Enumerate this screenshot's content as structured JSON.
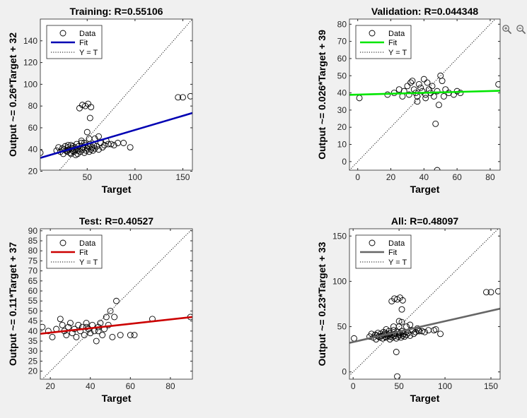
{
  "toolbar": {
    "icons": [
      "export-icon",
      "brush-icon",
      "datatip-icon",
      "pan-icon",
      "zoom-in-icon",
      "zoom-out-icon"
    ]
  },
  "legend": {
    "entries": [
      "Data",
      "Fit",
      "Y = T"
    ]
  },
  "colors": {
    "axes_bg": "#ffffff",
    "figure_bg": "#f0f0f0"
  },
  "chart_data": [
    {
      "type": "scatter",
      "title": "Training: R=0.55106",
      "xlabel": "Target",
      "ylabel": "Output ~= 0.26*Target + 32",
      "xlim": [
        1,
        160
      ],
      "ylim": [
        21,
        160
      ],
      "xticks": [
        50,
        100,
        150
      ],
      "yticks": [
        20,
        40,
        60,
        80,
        100,
        120,
        140
      ],
      "legend_position": "top-left",
      "fit": {
        "slope": 0.26,
        "intercept": 32,
        "color": "#0000b3"
      },
      "points": [
        [
          1,
          37
        ],
        [
          18,
          39
        ],
        [
          20,
          42
        ],
        [
          22,
          38
        ],
        [
          24,
          41
        ],
        [
          25,
          36
        ],
        [
          26,
          40
        ],
        [
          27,
          43
        ],
        [
          28,
          39
        ],
        [
          29,
          38
        ],
        [
          30,
          42
        ],
        [
          31,
          40
        ],
        [
          32,
          37
        ],
        [
          33,
          44
        ],
        [
          34,
          41
        ],
        [
          35,
          39
        ],
        [
          35,
          43
        ],
        [
          36,
          38
        ],
        [
          37,
          42
        ],
        [
          38,
          40
        ],
        [
          39,
          45
        ],
        [
          40,
          39
        ],
        [
          40,
          36
        ],
        [
          41,
          43
        ],
        [
          42,
          41
        ],
        [
          43,
          38
        ],
        [
          44,
          46
        ],
        [
          45,
          40
        ],
        [
          46,
          42
        ],
        [
          47,
          37
        ],
        [
          48,
          44
        ],
        [
          49,
          39
        ],
        [
          50,
          41
        ],
        [
          51,
          43
        ],
        [
          52,
          38
        ],
        [
          53,
          45
        ],
        [
          54,
          40
        ],
        [
          55,
          42
        ],
        [
          56,
          39
        ],
        [
          57,
          44
        ],
        [
          58,
          41
        ],
        [
          60,
          43
        ],
        [
          62,
          40
        ],
        [
          64,
          46
        ],
        [
          66,
          42
        ],
        [
          68,
          44
        ],
        [
          70,
          48
        ],
        [
          72,
          45
        ],
        [
          75,
          45
        ],
        [
          78,
          44
        ],
        [
          82,
          46
        ],
        [
          88,
          46
        ],
        [
          95,
          42
        ],
        [
          42,
          78
        ],
        [
          45,
          81
        ],
        [
          48,
          80
        ],
        [
          51,
          82
        ],
        [
          54,
          79
        ],
        [
          50,
          56
        ],
        [
          53,
          69
        ],
        [
          145,
          88
        ],
        [
          150,
          88
        ],
        [
          158,
          89
        ],
        [
          30,
          44
        ],
        [
          33,
          36
        ],
        [
          38,
          35
        ],
        [
          44,
          48
        ],
        [
          47,
          46
        ],
        [
          52,
          50
        ],
        [
          58,
          50
        ],
        [
          62,
          52
        ]
      ]
    },
    {
      "type": "scatter",
      "title": "Validation: R=0.044348",
      "xlabel": "Target",
      "ylabel": "Output ~= 0.026*Target + 39",
      "xlim": [
        -5,
        86
      ],
      "ylim": [
        -5,
        83
      ],
      "xticks": [
        0,
        20,
        40,
        60,
        80
      ],
      "yticks": [
        0,
        10,
        20,
        30,
        40,
        50,
        60,
        70,
        80
      ],
      "legend_position": "top-left",
      "fit": {
        "slope": 0.026,
        "intercept": 39,
        "color": "#00e600"
      },
      "points": [
        [
          1,
          37
        ],
        [
          18,
          39
        ],
        [
          22,
          40
        ],
        [
          25,
          42
        ],
        [
          27,
          38
        ],
        [
          28,
          41
        ],
        [
          30,
          44
        ],
        [
          31,
          39
        ],
        [
          32,
          46
        ],
        [
          33,
          47
        ],
        [
          34,
          42
        ],
        [
          35,
          40
        ],
        [
          36,
          38
        ],
        [
          37,
          45
        ],
        [
          38,
          43
        ],
        [
          39,
          41
        ],
        [
          40,
          48
        ],
        [
          41,
          39
        ],
        [
          42,
          46
        ],
        [
          43,
          42
        ],
        [
          44,
          40
        ],
        [
          45,
          44
        ],
        [
          46,
          38
        ],
        [
          47,
          22
        ],
        [
          48,
          41
        ],
        [
          49,
          33
        ],
        [
          50,
          50
        ],
        [
          51,
          47
        ],
        [
          52,
          38
        ],
        [
          53,
          42
        ],
        [
          55,
          40
        ],
        [
          58,
          39
        ],
        [
          60,
          41
        ],
        [
          62,
          40
        ],
        [
          85,
          45
        ],
        [
          48,
          -5
        ],
        [
          41,
          37
        ],
        [
          36,
          35
        ]
      ]
    },
    {
      "type": "scatter",
      "title": "Test: R=0.40527",
      "xlabel": "Target",
      "ylabel": "Output ~= 0.11*Target + 37",
      "xlim": [
        15,
        91
      ],
      "ylim": [
        16,
        91
      ],
      "xticks": [
        20,
        40,
        60,
        80
      ],
      "yticks": [
        20,
        25,
        30,
        35,
        40,
        45,
        50,
        55,
        60,
        65,
        70,
        75,
        80,
        85,
        90
      ],
      "legend_position": "top-left",
      "fit": {
        "slope": 0.11,
        "intercept": 37,
        "color": "#cc0000"
      },
      "points": [
        [
          16,
          42
        ],
        [
          19,
          40
        ],
        [
          21,
          37
        ],
        [
          23,
          41
        ],
        [
          25,
          46
        ],
        [
          26,
          43
        ],
        [
          27,
          40
        ],
        [
          28,
          38
        ],
        [
          29,
          42
        ],
        [
          30,
          44
        ],
        [
          31,
          39
        ],
        [
          32,
          41
        ],
        [
          33,
          37
        ],
        [
          34,
          43
        ],
        [
          35,
          40
        ],
        [
          36,
          42
        ],
        [
          37,
          38
        ],
        [
          38,
          44
        ],
        [
          39,
          41
        ],
        [
          40,
          39
        ],
        [
          41,
          43
        ],
        [
          42,
          40
        ],
        [
          43,
          35
        ],
        [
          44,
          42
        ],
        [
          45,
          44
        ],
        [
          46,
          38
        ],
        [
          47,
          41
        ],
        [
          48,
          47
        ],
        [
          49,
          43
        ],
        [
          50,
          50
        ],
        [
          51,
          37
        ],
        [
          52,
          47
        ],
        [
          53,
          55
        ],
        [
          55,
          38
        ],
        [
          60,
          38
        ],
        [
          62,
          38
        ],
        [
          71,
          46
        ],
        [
          90,
          47
        ],
        [
          38,
          42
        ],
        [
          44,
          40
        ]
      ]
    },
    {
      "type": "scatter",
      "title": "All: R=0.48097",
      "xlabel": "Target",
      "ylabel": "Output ~= 0.23*Target + 33",
      "xlim": [
        -4,
        160
      ],
      "ylim": [
        -8,
        158
      ],
      "xticks": [
        0,
        50,
        100,
        150
      ],
      "yticks": [
        0,
        50,
        100,
        150
      ],
      "legend_position": "top-left",
      "fit": {
        "slope": 0.23,
        "intercept": 33,
        "color": "#666666"
      },
      "points": [
        [
          1,
          37
        ],
        [
          18,
          39
        ],
        [
          20,
          42
        ],
        [
          22,
          38
        ],
        [
          24,
          41
        ],
        [
          25,
          36
        ],
        [
          26,
          40
        ],
        [
          27,
          43
        ],
        [
          28,
          39
        ],
        [
          29,
          38
        ],
        [
          30,
          42
        ],
        [
          31,
          40
        ],
        [
          32,
          37
        ],
        [
          33,
          44
        ],
        [
          34,
          41
        ],
        [
          35,
          39
        ],
        [
          35,
          43
        ],
        [
          36,
          38
        ],
        [
          37,
          42
        ],
        [
          38,
          40
        ],
        [
          39,
          45
        ],
        [
          40,
          39
        ],
        [
          40,
          36
        ],
        [
          41,
          43
        ],
        [
          42,
          41
        ],
        [
          43,
          38
        ],
        [
          44,
          46
        ],
        [
          45,
          40
        ],
        [
          46,
          42
        ],
        [
          47,
          37
        ],
        [
          48,
          44
        ],
        [
          49,
          39
        ],
        [
          50,
          41
        ],
        [
          51,
          43
        ],
        [
          52,
          38
        ],
        [
          53,
          45
        ],
        [
          54,
          40
        ],
        [
          55,
          42
        ],
        [
          56,
          39
        ],
        [
          57,
          44
        ],
        [
          58,
          41
        ],
        [
          60,
          43
        ],
        [
          62,
          40
        ],
        [
          64,
          46
        ],
        [
          66,
          42
        ],
        [
          68,
          44
        ],
        [
          70,
          48
        ],
        [
          72,
          45
        ],
        [
          75,
          45
        ],
        [
          78,
          44
        ],
        [
          82,
          46
        ],
        [
          88,
          46
        ],
        [
          95,
          42
        ],
        [
          42,
          78
        ],
        [
          45,
          81
        ],
        [
          48,
          80
        ],
        [
          51,
          82
        ],
        [
          54,
          79
        ],
        [
          53,
          69
        ],
        [
          145,
          88
        ],
        [
          150,
          88
        ],
        [
          158,
          89
        ],
        [
          47,
          22
        ],
        [
          48,
          -5
        ],
        [
          50,
          56
        ],
        [
          50,
          50
        ],
        [
          53,
          55
        ],
        [
          36,
          47
        ],
        [
          44,
          50
        ],
        [
          58,
          50
        ],
        [
          62,
          52
        ],
        [
          71,
          46
        ],
        [
          90,
          47
        ]
      ]
    }
  ]
}
